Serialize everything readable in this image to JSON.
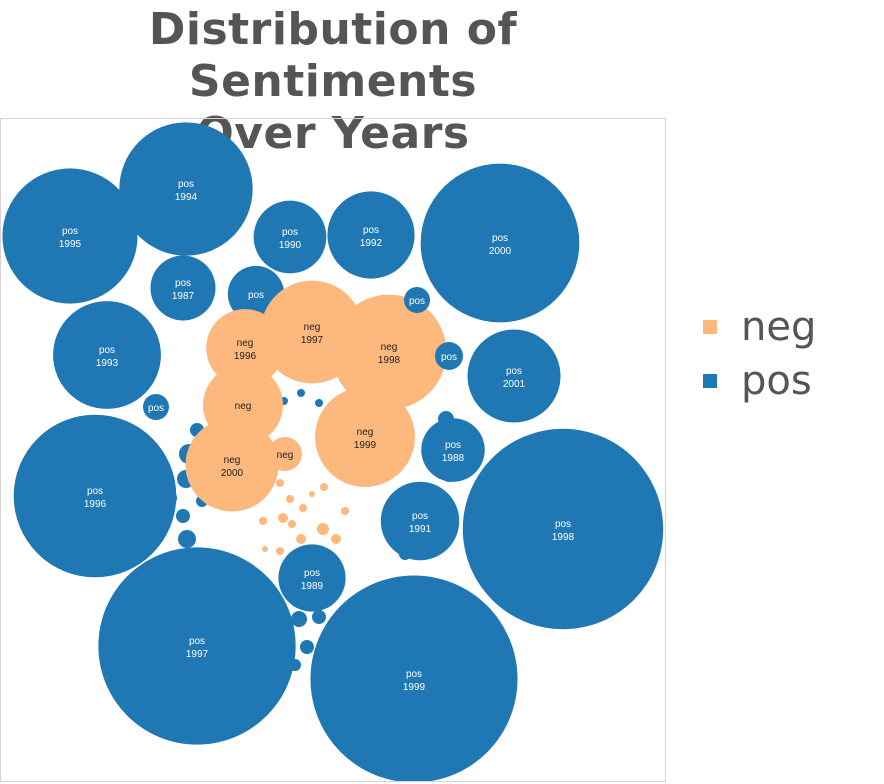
{
  "chart_data": {
    "type": "bubble",
    "title": "Distribution of Sentiments Over Years",
    "title_lines": [
      "Distribution of Sentiments",
      "Over Years"
    ],
    "legend": {
      "position": "right",
      "entries": [
        {
          "name": "neg",
          "color": "#fdb97d"
        },
        {
          "name": "pos",
          "color": "#1f77b4"
        }
      ]
    },
    "colors": {
      "neg": "#fdb97d",
      "pos": "#1f77b4"
    },
    "bubbles": [
      {
        "sentiment": "pos",
        "year": "1995",
        "size": 19.0
      },
      {
        "sentiment": "pos",
        "year": "1994",
        "size": 18.5
      },
      {
        "sentiment": "pos",
        "year": "1990",
        "size": 5.5
      },
      {
        "sentiment": "pos",
        "year": "1992",
        "size": 7.9
      },
      {
        "sentiment": "pos",
        "year": "2000",
        "size": 26.2
      },
      {
        "sentiment": "pos",
        "year": "1987",
        "size": 4.4
      },
      {
        "sentiment": "pos",
        "year": "",
        "size": 3.3
      },
      {
        "sentiment": "pos",
        "year": "1993",
        "size": 12.1
      },
      {
        "sentiment": "pos",
        "year": "",
        "size": 1.0
      },
      {
        "sentiment": "pos",
        "year": "",
        "size": 1.2
      },
      {
        "sentiment": "pos",
        "year": "",
        "size": 1.0
      },
      {
        "sentiment": "pos",
        "year": "2001",
        "size": 9.0
      },
      {
        "sentiment": "pos",
        "year": "1996",
        "size": 27.5
      },
      {
        "sentiment": "pos",
        "year": "1988",
        "size": 4.2
      },
      {
        "sentiment": "pos",
        "year": "",
        "size": 1.0
      },
      {
        "sentiment": "pos",
        "year": "1991",
        "size": 6.4
      },
      {
        "sentiment": "pos",
        "year": "1998",
        "size": 41.8
      },
      {
        "sentiment": "pos",
        "year": "1989",
        "size": 4.7
      },
      {
        "sentiment": "pos",
        "year": "1997",
        "size": 40.5
      },
      {
        "sentiment": "pos",
        "year": "1999",
        "size": 44.6
      },
      {
        "sentiment": "neg",
        "year": "1997",
        "size": 5.6
      },
      {
        "sentiment": "neg",
        "year": "1998",
        "size": 7.0
      },
      {
        "sentiment": "neg",
        "year": "1996",
        "size": 3.2
      },
      {
        "sentiment": "neg",
        "year": "",
        "size": 3.4
      },
      {
        "sentiment": "neg",
        "year": "",
        "size": 1.0
      },
      {
        "sentiment": "neg",
        "year": "1999",
        "size": 5.3
      },
      {
        "sentiment": "neg",
        "year": "2000",
        "size": 4.6
      },
      {
        "sentiment": "neg",
        "year": "",
        "size": 1.3
      },
      {
        "sentiment": "neg",
        "year": "",
        "size": 1.6
      }
    ]
  }
}
